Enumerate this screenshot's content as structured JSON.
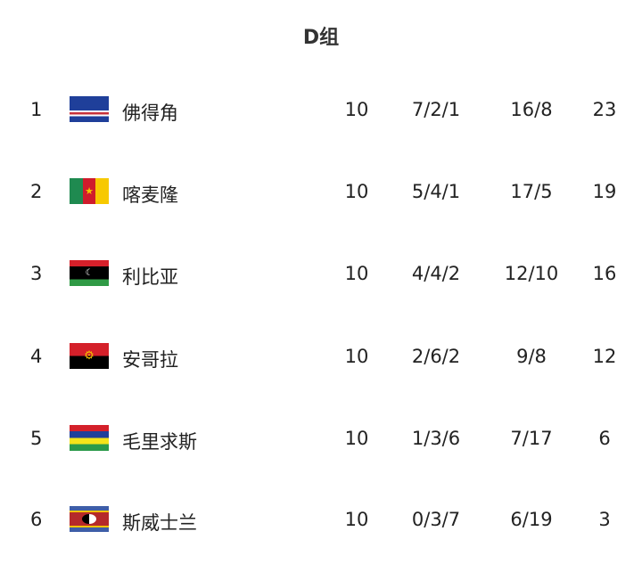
{
  "title": "D组",
  "rows": [
    {
      "rank": "1",
      "team": "佛得角",
      "flag": "cape-verde",
      "played": "10",
      "wdl": "7/2/1",
      "goals": "16/8",
      "points": "23"
    },
    {
      "rank": "2",
      "team": "喀麦隆",
      "flag": "cameroon",
      "played": "10",
      "wdl": "5/4/1",
      "goals": "17/5",
      "points": "19"
    },
    {
      "rank": "3",
      "team": "利比亚",
      "flag": "libya",
      "played": "10",
      "wdl": "4/4/2",
      "goals": "12/10",
      "points": "16"
    },
    {
      "rank": "4",
      "team": "安哥拉",
      "flag": "angola",
      "played": "10",
      "wdl": "2/6/2",
      "goals": "9/8",
      "points": "12"
    },
    {
      "rank": "5",
      "team": "毛里求斯",
      "flag": "mauritius",
      "played": "10",
      "wdl": "1/3/6",
      "goals": "7/17",
      "points": "6"
    },
    {
      "rank": "6",
      "team": "斯威士兰",
      "flag": "eswatini",
      "played": "10",
      "wdl": "0/3/7",
      "goals": "6/19",
      "points": "3"
    }
  ]
}
